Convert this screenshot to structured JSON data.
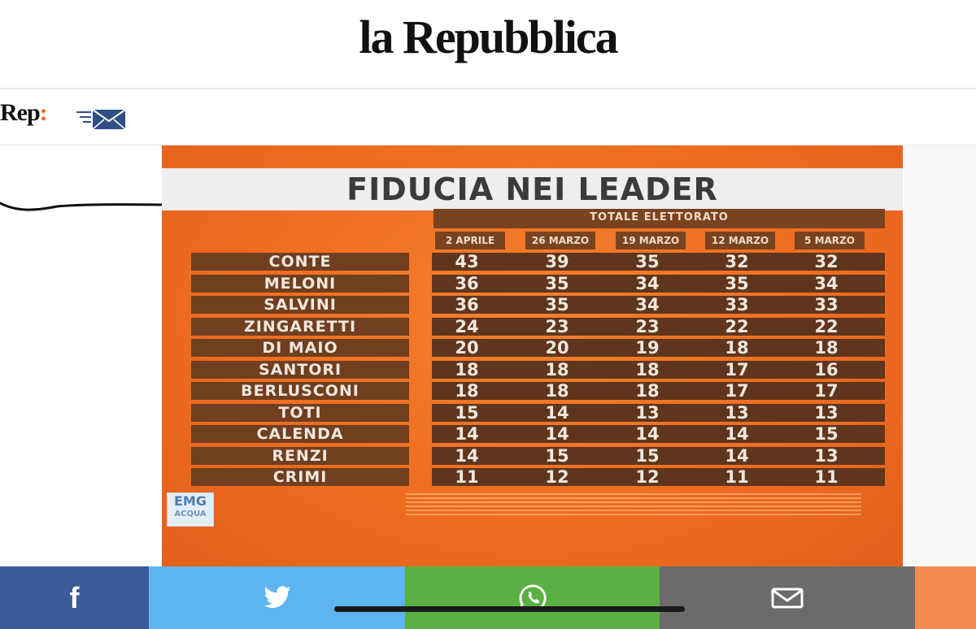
{
  "header": {
    "logo_text": "la Repubblica"
  },
  "subbar": {
    "rep_label": "Rep",
    "rep_colon": ":",
    "newsletter_icon": "envelope-fast-icon"
  },
  "infographic": {
    "title": "FIDUCIA NEI LEADER",
    "subtitle": "TOTALE ELETTORATO",
    "columns": [
      "2 APRILE",
      "26 MARZO",
      "19 MARZO",
      "12 MARZO",
      "5 MARZO"
    ],
    "rows": [
      {
        "name": "CONTE",
        "values": [
          "43",
          "39",
          "35",
          "32",
          "32"
        ]
      },
      {
        "name": "MELONI",
        "values": [
          "36",
          "35",
          "34",
          "35",
          "34"
        ]
      },
      {
        "name": "SALVINI",
        "values": [
          "36",
          "35",
          "34",
          "33",
          "33"
        ]
      },
      {
        "name": "ZINGARETTI",
        "values": [
          "24",
          "23",
          "23",
          "22",
          "22"
        ]
      },
      {
        "name": "DI MAIO",
        "values": [
          "20",
          "20",
          "19",
          "18",
          "18"
        ]
      },
      {
        "name": "SANTORI",
        "values": [
          "18",
          "18",
          "18",
          "17",
          "16"
        ]
      },
      {
        "name": "BERLUSCONI",
        "values": [
          "18",
          "18",
          "18",
          "17",
          "17"
        ]
      },
      {
        "name": "TOTI",
        "values": [
          "15",
          "14",
          "13",
          "13",
          "13"
        ]
      },
      {
        "name": "CALENDA",
        "values": [
          "14",
          "14",
          "14",
          "14",
          "15"
        ]
      },
      {
        "name": "RENZI",
        "values": [
          "14",
          "15",
          "15",
          "14",
          "13"
        ]
      },
      {
        "name": "CRIMI",
        "values": [
          "11",
          "12",
          "12",
          "11",
          "11"
        ]
      }
    ],
    "source_logo": {
      "line1": "EMG",
      "line2": "ACQUA"
    }
  },
  "share": {
    "buttons": [
      {
        "icon": "facebook-icon",
        "label": "f"
      },
      {
        "icon": "twitter-icon"
      },
      {
        "icon": "whatsapp-icon"
      },
      {
        "icon": "mail-icon"
      }
    ],
    "colors": {
      "facebook": "#3b5a98",
      "twitter": "#5cb5ef",
      "whatsapp": "#5ab142",
      "mail": "#6b6b6b",
      "extra": "#f58a4f"
    }
  }
}
